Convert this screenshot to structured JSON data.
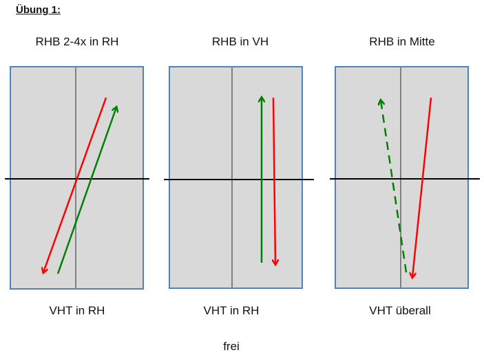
{
  "heading": "Übung 1:",
  "panels": [
    {
      "top_label": "RHB 2-4x in RH",
      "bottom_label": "VHT in RH"
    },
    {
      "top_label": "RHB in VH",
      "bottom_label": "VHT in RH"
    },
    {
      "top_label": "RHB in Mitte",
      "bottom_label": "VHT überall"
    }
  ],
  "footer": "frei",
  "colors": {
    "panel_fill": "#d9d9d9",
    "panel_border": "#4f81bd",
    "red_arrow": "#ff0000",
    "green_arrow": "#008000",
    "axis_line": "#000000",
    "center_line": "#808080"
  }
}
